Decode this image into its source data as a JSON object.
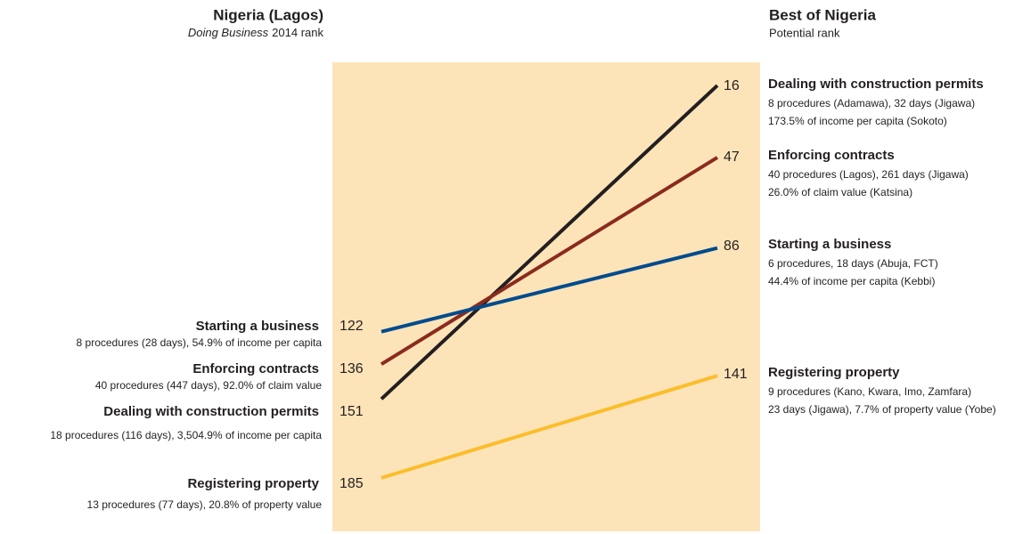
{
  "chart_data": {
    "type": "slope",
    "categories": [
      "Nigeria (Lagos)",
      "Best of Nigeria"
    ],
    "left_subtitle": {
      "italic": "Doing Business",
      "text": "2014 rank"
    },
    "right_subtitle": "Potential rank",
    "ylim": [
      6,
      208
    ],
    "background": "#fde4b8",
    "series": [
      {
        "name": "Dealing with construction permits",
        "color": "#231f20",
        "values": [
          151,
          16
        ],
        "left_detail": [
          "18 procedures (116 days), 3,504.9% of income per capita"
        ],
        "right_detail": [
          "8 procedures (Adamawa), 32 days (Jigawa)",
          "173.5% of income per capita (Sokoto)"
        ]
      },
      {
        "name": "Enforcing contracts",
        "color": "#8b2a1e",
        "values": [
          136,
          47
        ],
        "left_detail": [
          "40 procedures (447 days), 92.0% of claim value"
        ],
        "right_detail": [
          "40 procedures (Lagos), 261 days (Jigawa)",
          "26.0% of claim value (Katsina)"
        ]
      },
      {
        "name": "Starting a business",
        "color": "#004b8d",
        "values": [
          122,
          86
        ],
        "left_detail": [
          "8 procedures (28 days), 54.9% of income per capita"
        ],
        "right_detail": [
          "6 procedures, 18 days (Abuja, FCT)",
          "44.4% of income per capita (Kebbi)"
        ]
      },
      {
        "name": "Registering property",
        "color": "#fbbd2c",
        "values": [
          185,
          141
        ],
        "left_detail": [
          "13 procedures (77 days), 20.8% of property value"
        ],
        "right_detail": [
          "9 procedures (Kano, Kwara, Imo, Zamfara)",
          "23 days (Jigawa), 7.7% of property value (Yobe)"
        ]
      }
    ]
  }
}
